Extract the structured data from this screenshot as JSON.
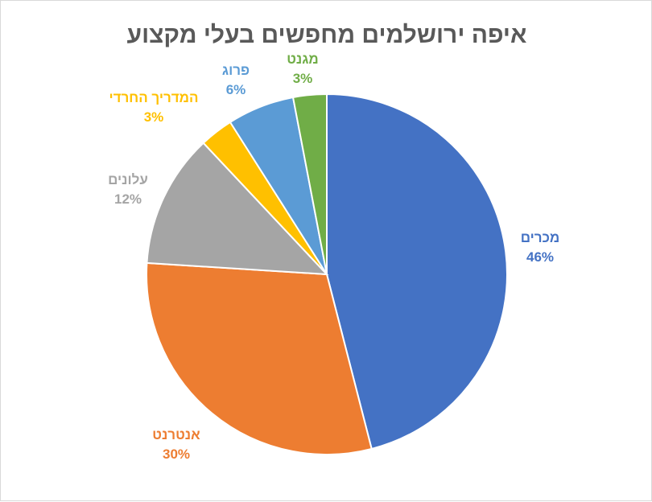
{
  "chart_data": {
    "type": "pie",
    "title": "איפה ירושלמים מחפשים בעלי מקצוע",
    "slices": [
      {
        "label": "מכרים",
        "value": 46,
        "value_label": "46%",
        "color": "#4472C4"
      },
      {
        "label": "אנטרנט",
        "value": 30,
        "value_label": "30%",
        "color": "#ED7D31"
      },
      {
        "label": "עלונים",
        "value": 12,
        "value_label": "12%",
        "color": "#A5A5A5"
      },
      {
        "label": "המדריך החרדי",
        "value": 3,
        "value_label": "3%",
        "color": "#FFC000"
      },
      {
        "label": "פרוג",
        "value": 6,
        "value_label": "6%",
        "color": "#5B9BD5"
      },
      {
        "label": "מגנט",
        "value": 3,
        "value_label": "3%",
        "color": "#70AD47"
      }
    ],
    "legend": "none",
    "start_angle": "top",
    "direction": "clockwise"
  }
}
